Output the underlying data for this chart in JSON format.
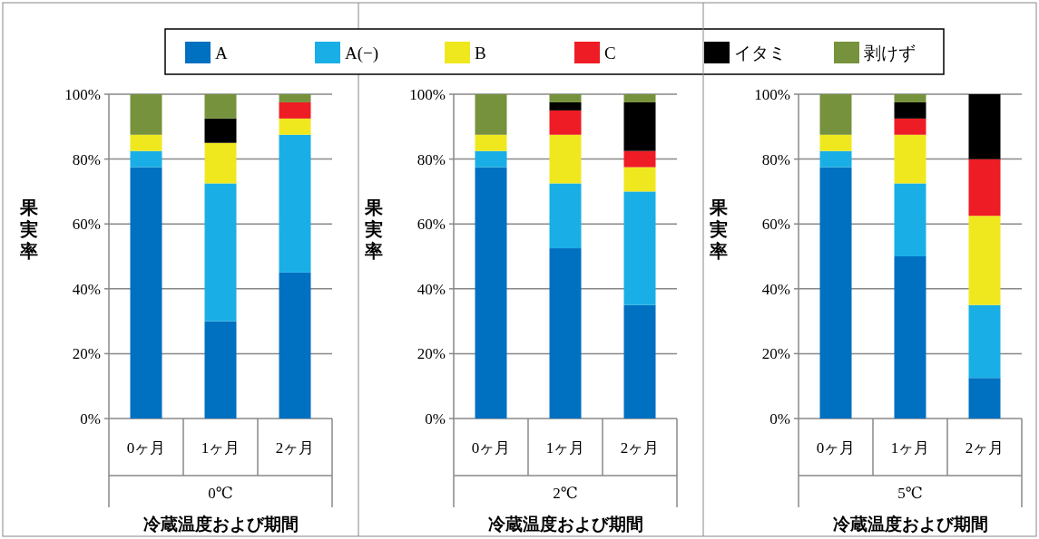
{
  "chart_data": [
    {
      "type": "bar",
      "stacked": true,
      "legend": "top",
      "grid": "y",
      "ylabel": "果実率",
      "xlabel": "冷蔵温度および期間",
      "annotations": [
        "0℃"
      ],
      "categories": [
        "0ヶ月",
        "1ヶ月",
        "2ヶ月"
      ],
      "ylim": [
        0,
        100
      ],
      "yticks": [
        {
          "value": 0,
          "label": "0%"
        },
        {
          "value": 20,
          "label": "20%"
        },
        {
          "value": 40,
          "label": "40%"
        },
        {
          "value": 60,
          "label": "60%"
        },
        {
          "value": 80,
          "label": "80%"
        },
        {
          "value": 100,
          "label": "100%"
        }
      ],
      "series": [
        {
          "name": "A",
          "color": "#0070c0",
          "values": [
            77.5,
            30,
            45
          ]
        },
        {
          "name": "A(−)",
          "color": "#19afe6",
          "values": [
            5,
            42.5,
            42.5
          ]
        },
        {
          "name": "B",
          "color": "#f0e81e",
          "values": [
            5,
            12.5,
            5
          ]
        },
        {
          "name": "C",
          "color": "#ee1c24",
          "values": [
            0,
            0,
            5
          ]
        },
        {
          "name": "イタミ",
          "color": "#000000",
          "values": [
            0,
            7.5,
            0
          ]
        },
        {
          "name": "剥けず",
          "color": "#76923c",
          "values": [
            12.5,
            7.5,
            2.5
          ]
        }
      ]
    },
    {
      "type": "bar",
      "stacked": true,
      "grid": "y",
      "ylabel": "果実率",
      "xlabel": "冷蔵温度および期間",
      "annotations": [
        "2℃"
      ],
      "categories": [
        "0ヶ月",
        "1ヶ月",
        "2ヶ月"
      ],
      "ylim": [
        0,
        100
      ],
      "yticks": [
        {
          "value": 0,
          "label": "0%"
        },
        {
          "value": 20,
          "label": "20%"
        },
        {
          "value": 40,
          "label": "40%"
        },
        {
          "value": 60,
          "label": "60%"
        },
        {
          "value": 80,
          "label": "80%"
        },
        {
          "value": 100,
          "label": "100%"
        }
      ],
      "series": [
        {
          "color": "#0070c0",
          "values": [
            77.5,
            52.5,
            35
          ]
        },
        {
          "color": "#19afe6",
          "values": [
            5,
            20,
            35
          ]
        },
        {
          "color": "#f0e81e",
          "values": [
            5,
            15,
            7.5
          ]
        },
        {
          "color": "#ee1c24",
          "values": [
            0,
            7.5,
            5
          ]
        },
        {
          "color": "#000000",
          "values": [
            0,
            2.5,
            15
          ]
        },
        {
          "color": "#76923c",
          "values": [
            12.5,
            2.5,
            2.5
          ]
        }
      ]
    },
    {
      "type": "bar",
      "stacked": true,
      "grid": "y",
      "ylabel": "果実率",
      "xlabel": "冷蔵温度および期間",
      "annotations": [
        "5℃"
      ],
      "categories": [
        "0ヶ月",
        "1ヶ月",
        "2ヶ月"
      ],
      "ylim": [
        0,
        100
      ],
      "yticks": [
        {
          "value": 0,
          "label": "0%"
        },
        {
          "value": 20,
          "label": "20%"
        },
        {
          "value": 40,
          "label": "40%"
        },
        {
          "value": 60,
          "label": "60%"
        },
        {
          "value": 80,
          "label": "80%"
        },
        {
          "value": 100,
          "label": "100%"
        }
      ],
      "series": [
        {
          "color": "#0070c0",
          "values": [
            77.5,
            50,
            12.5
          ]
        },
        {
          "color": "#19afe6",
          "values": [
            5,
            22.5,
            22.5
          ]
        },
        {
          "color": "#f0e81e",
          "values": [
            5,
            15,
            27.5
          ]
        },
        {
          "color": "#ee1c24",
          "values": [
            0,
            5,
            17.5
          ]
        },
        {
          "color": "#000000",
          "values": [
            0,
            5,
            20
          ]
        },
        {
          "color": "#76923c",
          "values": [
            12.5,
            2.5,
            0
          ]
        }
      ]
    }
  ]
}
